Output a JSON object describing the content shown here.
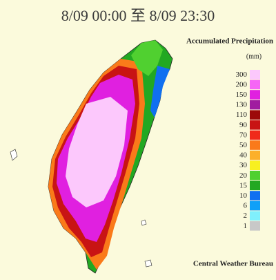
{
  "header": {
    "title": "8/09 00:00 至 8/09 23:30"
  },
  "legend": {
    "title": "Accumulated Precipitation",
    "unit": "(mm)",
    "items": [
      {
        "label": "300",
        "color": "#fcc8fc"
      },
      {
        "label": "200",
        "color": "#f666f6"
      },
      {
        "label": "150",
        "color": "#e020e0"
      },
      {
        "label": "130",
        "color": "#a01ca0"
      },
      {
        "label": "110",
        "color": "#9c0a0a"
      },
      {
        "label": "90",
        "color": "#c81414"
      },
      {
        "label": "70",
        "color": "#f02a1a"
      },
      {
        "label": "50",
        "color": "#fa7a1a"
      },
      {
        "label": "40",
        "color": "#fcb02a"
      },
      {
        "label": "30",
        "color": "#f8f020"
      },
      {
        "label": "20",
        "color": "#50d030"
      },
      {
        "label": "15",
        "color": "#22a822"
      },
      {
        "label": "10",
        "color": "#1070f0"
      },
      {
        "label": "6",
        "color": "#10a0f8"
      },
      {
        "label": "2",
        "color": "#80f0fc"
      },
      {
        "label": "1",
        "color": "#c8c8c8"
      }
    ]
  },
  "credit": "Central Weather Bureau"
}
